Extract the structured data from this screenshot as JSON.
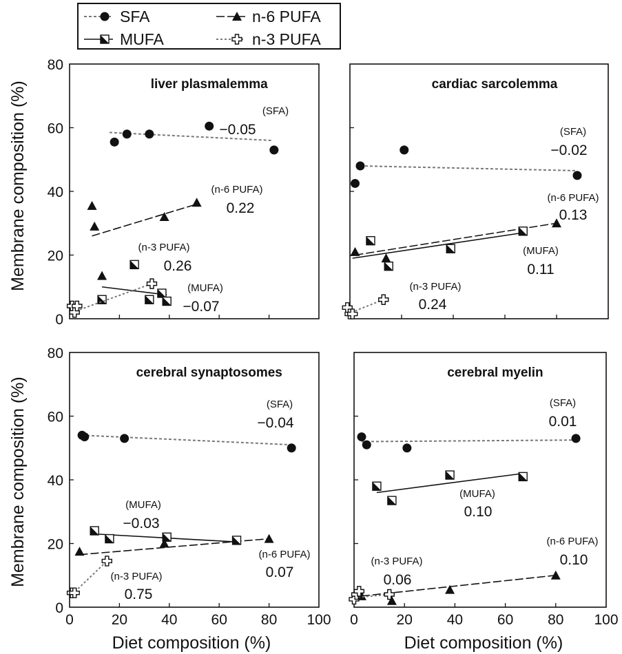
{
  "figure": {
    "ylabel": "Membrane composition (%)",
    "xlabel": "Diet composition (%)"
  },
  "legend": [
    {
      "name": "SFA",
      "marker": "circle-filled",
      "line": "dotted"
    },
    {
      "name": "n-6 PUFA",
      "marker": "triangle-filled",
      "line": "dash-dot"
    },
    {
      "name": "MUFA",
      "marker": "square-half",
      "line": "solid"
    },
    {
      "name": "n-3 PUFA",
      "marker": "cross-open",
      "line": "dotted"
    }
  ],
  "colors": {
    "ink": "#111111",
    "grey": "#777777",
    "background": "#ffffff"
  },
  "chart_data": [
    {
      "type": "scatter",
      "title": "liver plasmalemma",
      "xlim": [
        0,
        100
      ],
      "ylim": [
        0,
        80
      ],
      "xticks": [
        "0",
        "20",
        "40",
        "60",
        "80",
        "100"
      ],
      "yticks": [
        "0",
        "20",
        "40",
        "60",
        "80"
      ],
      "show_x_ticklabels": false,
      "show_y_ticklabels": true,
      "series": [
        {
          "name": "SFA",
          "x": [
            18,
            23,
            32,
            56,
            82
          ],
          "y": [
            55.5,
            58,
            58,
            60.5,
            53
          ],
          "trend": [
            [
              16,
              58.5
            ],
            [
              81,
              56
            ]
          ]
        },
        {
          "name": "n-6 PUFA",
          "x": [
            9,
            10,
            13,
            38,
            51
          ],
          "y": [
            35.5,
            29,
            13.5,
            32,
            36.5
          ],
          "trend": [
            [
              9,
              26
            ],
            [
              51,
              36
            ]
          ]
        },
        {
          "name": "MUFA",
          "x": [
            13,
            26,
            32,
            37,
            39
          ],
          "y": [
            6,
            17,
            6,
            8,
            5.5
          ],
          "trend": [
            [
              13,
              10
            ],
            [
              39,
              7.5
            ]
          ]
        },
        {
          "name": "n-3 PUFA",
          "x": [
            1,
            2,
            3,
            33
          ],
          "y": [
            4,
            2,
            4,
            11
          ],
          "trend": [
            [
              1,
              2
            ],
            [
              33,
              11
            ]
          ]
        }
      ],
      "annotations": [
        {
          "series": "SFA",
          "label": "(SFA)",
          "value": "−0.05"
        },
        {
          "series": "n-6 PUFA",
          "label": "(n-6 PUFA)",
          "value": "0.22"
        },
        {
          "series": "n-3 PUFA",
          "label": "(n-3 PUFA)",
          "value": "0.26"
        },
        {
          "series": "MUFA",
          "label": "(MUFA)",
          "value": "−0.07"
        }
      ]
    },
    {
      "type": "scatter",
      "title": "cardiac sarcolemma",
      "xlim": [
        0,
        100
      ],
      "ylim": [
        0,
        80
      ],
      "xticks": [
        "0",
        "20",
        "40",
        "60",
        "80",
        "100"
      ],
      "yticks": [
        "0",
        "20",
        "40",
        "60",
        "80"
      ],
      "show_x_ticklabels": false,
      "show_y_ticklabels": false,
      "series": [
        {
          "name": "SFA",
          "x": [
            2,
            4,
            21,
            88
          ],
          "y": [
            42.5,
            48,
            53,
            45
          ],
          "trend": [
            [
              4,
              48
            ],
            [
              88,
              46.5
            ]
          ]
        },
        {
          "name": "n-6 PUFA",
          "x": [
            2,
            14,
            80
          ],
          "y": [
            21,
            19,
            30
          ],
          "trend": [
            [
              2,
              20
            ],
            [
              80,
              30
            ]
          ]
        },
        {
          "name": "MUFA",
          "x": [
            8,
            15,
            39,
            67
          ],
          "y": [
            24.5,
            16.5,
            22,
            27.5
          ],
          "trend": [
            [
              1,
              19
            ],
            [
              67,
              27
            ]
          ]
        },
        {
          "name": "n-3 PUFA",
          "x": [
            -1,
            0,
            1,
            13
          ],
          "y": [
            3.5,
            1.5,
            1.5,
            6
          ],
          "trend": [
            [
              -1,
              1.5
            ],
            [
              13,
              6
            ]
          ]
        }
      ],
      "annotations": [
        {
          "series": "SFA",
          "label": "(SFA)",
          "value": "−0.02"
        },
        {
          "series": "n-6 PUFA",
          "label": "(n-6 PUFA)",
          "value": "0.13"
        },
        {
          "series": "MUFA",
          "label": "(MUFA)",
          "value": "0.11"
        },
        {
          "series": "n-3 PUFA",
          "label": "(n-3 PUFA)",
          "value": "0.24"
        }
      ]
    },
    {
      "type": "scatter",
      "title": "cerebral synaptosomes",
      "xlim": [
        0,
        100
      ],
      "ylim": [
        0,
        80
      ],
      "xticks": [
        "0",
        "20",
        "40",
        "60",
        "80",
        "100"
      ],
      "yticks": [
        "0",
        "20",
        "40",
        "60",
        "80"
      ],
      "show_x_ticklabels": true,
      "show_y_ticklabels": true,
      "series": [
        {
          "name": "SFA",
          "x": [
            5,
            6,
            22,
            89
          ],
          "y": [
            54,
            53.5,
            53,
            50
          ],
          "trend": [
            [
              5,
              54
            ],
            [
              89,
              51
            ]
          ]
        },
        {
          "name": "n-6 PUFA",
          "x": [
            4,
            38,
            80
          ],
          "y": [
            17.5,
            20,
            21.5
          ],
          "trend": [
            [
              4,
              16.5
            ],
            [
              80,
              21.5
            ]
          ]
        },
        {
          "name": "MUFA",
          "x": [
            10,
            16,
            39,
            67
          ],
          "y": [
            24,
            21.5,
            22,
            21
          ],
          "trend": [
            [
              10,
              23
            ],
            [
              67,
              20.5
            ]
          ]
        },
        {
          "name": "n-3 PUFA",
          "x": [
            1,
            2,
            15
          ],
          "y": [
            4.5,
            4.5,
            14.5
          ],
          "trend": [
            [
              1,
              4
            ],
            [
              15,
              14.5
            ]
          ]
        }
      ],
      "annotations": [
        {
          "series": "SFA",
          "label": "(SFA)",
          "value": "−0.04"
        },
        {
          "series": "MUFA",
          "label": "(MUFA)",
          "value": "−0.03"
        },
        {
          "series": "n-6 PUFA",
          "label": "(n-6 PUFA)",
          "value": "0.07"
        },
        {
          "series": "n-3 PUFA",
          "label": "(n-3 PUFA)",
          "value": "0.75"
        }
      ]
    },
    {
      "type": "scatter",
      "title": "cerebral myelin",
      "xlim": [
        0,
        100
      ],
      "ylim": [
        0,
        80
      ],
      "xticks": [
        "0",
        "20",
        "40",
        "60",
        "80",
        "100"
      ],
      "yticks": [
        "0",
        "20",
        "40",
        "60",
        "80"
      ],
      "show_x_ticklabels": true,
      "show_y_ticklabels": false,
      "series": [
        {
          "name": "SFA",
          "x": [
            3,
            5,
            21,
            88
          ],
          "y": [
            53.5,
            51,
            50,
            53
          ],
          "trend": [
            [
              3,
              52
            ],
            [
              88,
              52.5
            ]
          ]
        },
        {
          "name": "MUFA",
          "x": [
            9,
            15,
            38,
            67
          ],
          "y": [
            38,
            33.5,
            41.5,
            41
          ],
          "trend": [
            [
              9,
              36
            ],
            [
              67,
              42
            ]
          ]
        },
        {
          "name": "n-6 PUFA",
          "x": [
            3,
            15,
            38,
            80
          ],
          "y": [
            3.5,
            2,
            5.5,
            10
          ],
          "trend": [
            [
              3,
              3.5
            ],
            [
              80,
              10
            ]
          ]
        },
        {
          "name": "n-3 PUFA",
          "x": [
            0,
            1,
            2,
            14
          ],
          "y": [
            2.5,
            4,
            5,
            4
          ],
          "trend": [
            [
              0,
              3
            ],
            [
              14,
              4
            ]
          ]
        }
      ],
      "annotations": [
        {
          "series": "SFA",
          "label": "(SFA)",
          "value": "0.01"
        },
        {
          "series": "MUFA",
          "label": "(MUFA)",
          "value": "0.10"
        },
        {
          "series": "n-6 PUFA",
          "label": "(n-6 PUFA)",
          "value": "0.10"
        },
        {
          "series": "n-3 PUFA",
          "label": "(n-3 PUFA)",
          "value": "0.06"
        }
      ]
    }
  ]
}
